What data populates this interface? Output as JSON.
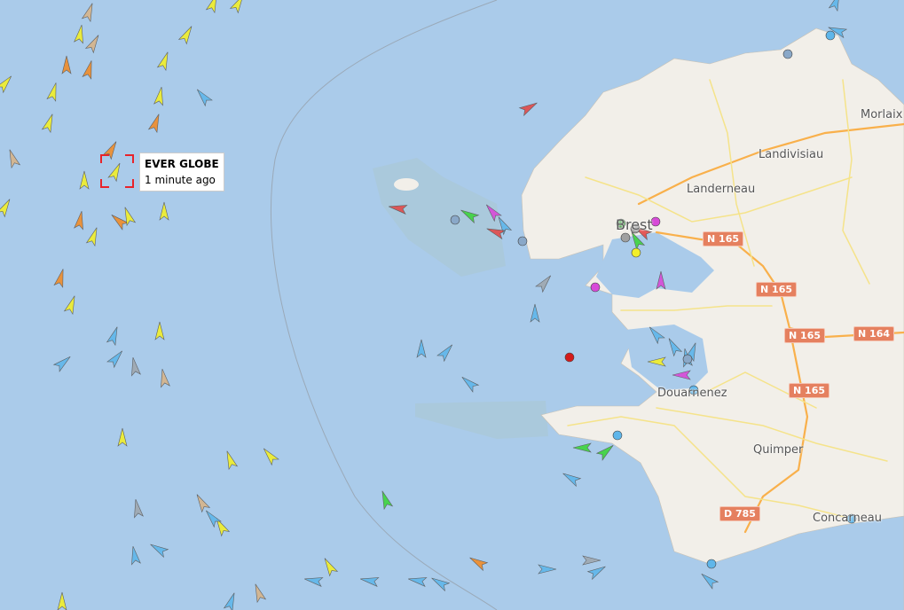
{
  "map": {
    "places": [
      {
        "name": "Morlaix"
      },
      {
        "name": "Landivisiau"
      },
      {
        "name": "Landerneau"
      },
      {
        "name": "Brest"
      },
      {
        "name": "Douarnenez"
      },
      {
        "name": "Quimper"
      },
      {
        "name": "Concarneau"
      }
    ],
    "road_shields": [
      "N 165",
      "N 165",
      "N 165",
      "N 164",
      "N 165",
      "D 785"
    ],
    "colors": {
      "sea": "#aacbea",
      "land": "#f2efe9",
      "motorway": "#f9b04b",
      "road": "#f5e38a",
      "shield": "#e5805f"
    }
  },
  "tooltip": {
    "vessel_name": "EVER GLOBE",
    "last_seen": "1 minute ago"
  },
  "selection_color": "#e8232a"
}
